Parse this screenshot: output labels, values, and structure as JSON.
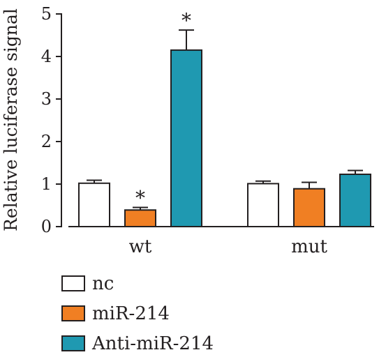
{
  "chart_data": {
    "type": "bar",
    "title": "",
    "xlabel": "",
    "ylabel": "Relative luciferase signal",
    "ylim": [
      0,
      5
    ],
    "yticks": [
      0,
      1,
      2,
      3,
      4,
      5
    ],
    "grid": false,
    "legend_position": "bottom-left",
    "categories": [
      "wt",
      "mut"
    ],
    "series": [
      {
        "name": "nc",
        "color": "#ffffff",
        "values": [
          1.02,
          1.01
        ],
        "errors": [
          0.07,
          0.06
        ],
        "annotations": [
          "",
          ""
        ]
      },
      {
        "name": "miR-214",
        "color": "#f07f23",
        "values": [
          0.39,
          0.89
        ],
        "errors": [
          0.06,
          0.15
        ],
        "annotations": [
          "*",
          ""
        ]
      },
      {
        "name": "Anti-miR-214",
        "color": "#1f99b1",
        "values": [
          4.15,
          1.23
        ],
        "errors": [
          0.47,
          0.09
        ],
        "annotations": [
          "*",
          ""
        ]
      }
    ]
  }
}
